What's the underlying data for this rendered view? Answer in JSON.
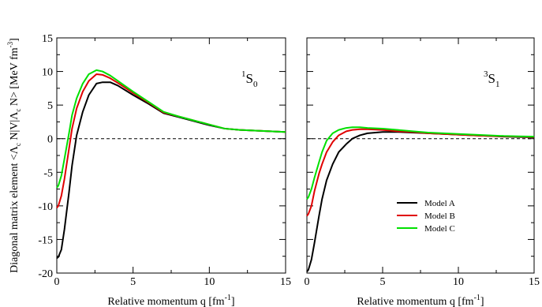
{
  "chart_data": [
    {
      "type": "line",
      "panel_label": {
        "sup": "1",
        "main": "S",
        "sub": "0"
      },
      "xlabel": {
        "main": "Relative momentum q [fm",
        "sup": "-1",
        "close": "]"
      },
      "ylabel": "Diagonal matrix element <Λ_c N|V|Λ_c N> [MeV fm^-3]",
      "xlim": [
        0,
        15
      ],
      "ylim": [
        -20,
        15
      ],
      "xticks": [
        0,
        5,
        10,
        15
      ],
      "yticks": [
        -20,
        -15,
        -10,
        -5,
        0,
        5,
        10,
        15
      ],
      "zero_line": true,
      "series": [
        {
          "name": "Model A",
          "color": "#000000",
          "x": [
            0,
            0.1,
            0.3,
            0.5,
            0.8,
            1.0,
            1.3,
            1.7,
            2.1,
            2.6,
            3.0,
            3.5,
            4.0,
            5.0,
            6.0,
            7.0,
            8.0,
            9.0,
            10.0,
            11.0,
            12.0,
            13.0,
            14.0,
            15.0
          ],
          "y": [
            -17.8,
            -17.6,
            -16.5,
            -13.5,
            -8.0,
            -4.0,
            0.5,
            4.0,
            6.5,
            8.2,
            8.4,
            8.4,
            7.9,
            6.5,
            5.2,
            3.8,
            3.2,
            2.6,
            2.0,
            1.5,
            1.3,
            1.2,
            1.1,
            1.0
          ]
        },
        {
          "name": "Model B",
          "color": "#e00000",
          "x": [
            0,
            0.1,
            0.3,
            0.5,
            0.8,
            1.0,
            1.3,
            1.7,
            2.1,
            2.6,
            3.0,
            3.5,
            4.0,
            5.0,
            6.0,
            7.0,
            8.0,
            9.0,
            10.0,
            11.0,
            12.0,
            13.0,
            14.0,
            15.0
          ],
          "y": [
            -10.3,
            -10.0,
            -8.5,
            -6.0,
            -1.5,
            1.5,
            4.5,
            7.0,
            8.6,
            9.6,
            9.5,
            9.0,
            8.3,
            6.8,
            5.4,
            3.9,
            3.3,
            2.7,
            2.1,
            1.5,
            1.3,
            1.2,
            1.1,
            1.0
          ]
        },
        {
          "name": "Model C",
          "color": "#00e000",
          "x": [
            0,
            0.1,
            0.3,
            0.5,
            0.8,
            1.0,
            1.3,
            1.7,
            2.1,
            2.6,
            3.0,
            3.5,
            4.0,
            5.0,
            6.0,
            7.0,
            8.0,
            9.0,
            10.0,
            11.0,
            12.0,
            13.0,
            14.0,
            15.0
          ],
          "y": [
            -7.3,
            -7.0,
            -5.5,
            -3.0,
            0.8,
            3.5,
            6.0,
            8.2,
            9.6,
            10.2,
            10.0,
            9.4,
            8.6,
            7.0,
            5.5,
            4.0,
            3.3,
            2.7,
            2.1,
            1.5,
            1.3,
            1.2,
            1.1,
            1.0
          ]
        }
      ]
    },
    {
      "type": "line",
      "panel_label": {
        "sup": "3",
        "main": "S",
        "sub": "1"
      },
      "xlabel": {
        "main": "Relative momentum q [fm",
        "sup": "-1",
        "close": "]"
      },
      "xlim": [
        0,
        15
      ],
      "ylim": [
        -20,
        15
      ],
      "xticks": [
        0,
        5,
        10,
        15
      ],
      "zero_line": true,
      "legend": {
        "position": "lower-right",
        "entries": [
          "Model A",
          "Model B",
          "Model C"
        ]
      },
      "series": [
        {
          "name": "Model A",
          "color": "#000000",
          "x": [
            0,
            0.1,
            0.3,
            0.5,
            0.8,
            1.0,
            1.3,
            1.7,
            2.1,
            2.6,
            3.0,
            3.5,
            4.0,
            5.0,
            6.0,
            7.0,
            8.0,
            9.0,
            10.0,
            11.0,
            12.0,
            13.0,
            14.0,
            15.0
          ],
          "y": [
            -19.8,
            -19.5,
            -18.0,
            -15.5,
            -11.5,
            -9.0,
            -6.2,
            -3.8,
            -2.0,
            -0.8,
            0.0,
            0.5,
            0.8,
            1.0,
            1.0,
            0.9,
            0.8,
            0.7,
            0.6,
            0.5,
            0.4,
            0.3,
            0.25,
            0.2
          ]
        },
        {
          "name": "Model B",
          "color": "#e00000",
          "x": [
            0,
            0.1,
            0.3,
            0.5,
            0.8,
            1.0,
            1.3,
            1.7,
            2.1,
            2.6,
            3.0,
            3.5,
            4.0,
            5.0,
            6.0,
            7.0,
            8.0,
            9.0,
            10.0,
            11.0,
            12.0,
            13.0,
            14.0,
            15.0
          ],
          "y": [
            -11.5,
            -11.2,
            -10.0,
            -7.8,
            -5.2,
            -3.8,
            -2.0,
            -0.5,
            0.5,
            1.1,
            1.3,
            1.4,
            1.4,
            1.3,
            1.1,
            1.0,
            0.8,
            0.7,
            0.6,
            0.5,
            0.4,
            0.35,
            0.3,
            0.25
          ]
        },
        {
          "name": "Model C",
          "color": "#00e000",
          "x": [
            0,
            0.1,
            0.3,
            0.5,
            0.8,
            1.0,
            1.3,
            1.7,
            2.1,
            2.6,
            3.0,
            3.5,
            4.0,
            5.0,
            6.0,
            7.0,
            8.0,
            9.0,
            10.0,
            11.0,
            12.0,
            13.0,
            14.0,
            15.0
          ],
          "y": [
            -9.0,
            -8.7,
            -7.5,
            -5.8,
            -3.5,
            -2.0,
            -0.3,
            0.8,
            1.3,
            1.6,
            1.7,
            1.7,
            1.6,
            1.5,
            1.3,
            1.1,
            0.9,
            0.8,
            0.7,
            0.6,
            0.5,
            0.4,
            0.35,
            0.3
          ]
        }
      ]
    }
  ]
}
